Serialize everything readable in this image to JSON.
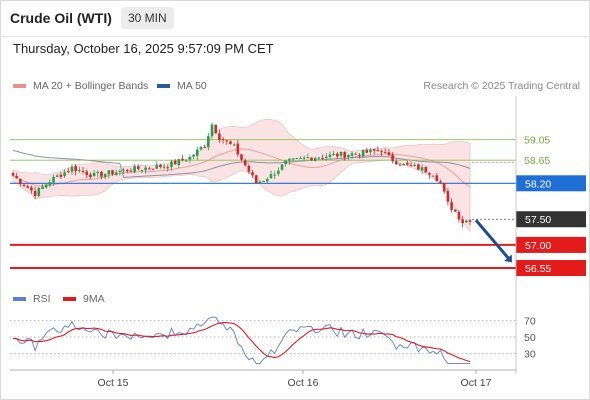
{
  "header": {
    "title": "Crude Oil (WTI)",
    "interval": "30 MIN"
  },
  "datetime": "Thursday, October 16, 2025 9:57:09 PM CET",
  "legend": {
    "bollinger": {
      "label": "MA 20 + Bollinger Bands",
      "color": "#f08c8c"
    },
    "ma50": {
      "label": "MA 50",
      "color": "#2b5a9a"
    }
  },
  "credit": "Research © 2025 Trading Central",
  "chart_data": [
    {
      "type": "candlestick",
      "ylim": [
        56.2,
        59.9
      ],
      "levels": [
        {
          "label": "59.05",
          "value": 59.05,
          "kind": "resistance",
          "color": "#8cc152"
        },
        {
          "label": "58.65",
          "value": 58.65,
          "kind": "resistance",
          "color": "#8cc152"
        },
        {
          "label": "58.20",
          "value": 58.2,
          "kind": "pivot",
          "color": "#1f6fd6"
        },
        {
          "label": "57.50",
          "value": 57.5,
          "kind": "last",
          "color": "#333333"
        },
        {
          "label": "57.00",
          "value": 57.0,
          "kind": "support",
          "color": "#e31b1b"
        },
        {
          "label": "56.55",
          "value": 56.55,
          "kind": "support",
          "color": "#e31b1b"
        }
      ],
      "arrow": {
        "direction": "down",
        "color": "#1f4e8c"
      }
    },
    {
      "type": "line",
      "ylim": [
        15,
        85
      ],
      "yticks": [
        "70",
        "50",
        "30"
      ],
      "series": [
        {
          "name": "RSI",
          "color": "#5b7fd6"
        },
        {
          "name": "9MA",
          "color": "#e31b1b"
        }
      ]
    }
  ],
  "xaxis": {
    "ticks": [
      "Oct 15",
      "Oct 16",
      "Oct 17"
    ]
  }
}
